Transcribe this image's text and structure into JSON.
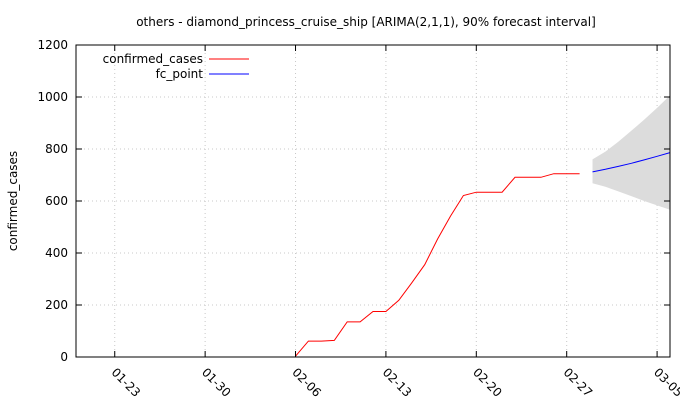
{
  "chart_data": {
    "type": "line",
    "title": "others - diamond_princess_cruise_ship [ARIMA(2,1,1), 90% forecast interval]",
    "ylabel": "confirmed_cases",
    "xlabel": "",
    "ylim": [
      0,
      1200
    ],
    "yticks": [
      0,
      200,
      400,
      600,
      800,
      1000,
      1200
    ],
    "xlim": [
      "2020-01-20",
      "2020-03-06"
    ],
    "xticks": [
      {
        "date": "2020-01-23",
        "label": "01-23"
      },
      {
        "date": "2020-01-30",
        "label": "01-30"
      },
      {
        "date": "2020-02-06",
        "label": "02-06"
      },
      {
        "date": "2020-02-13",
        "label": "02-13"
      },
      {
        "date": "2020-02-20",
        "label": "02-20"
      },
      {
        "date": "2020-02-27",
        "label": "02-27"
      },
      {
        "date": "2020-03-05",
        "label": "03-05"
      }
    ],
    "grid": true,
    "legend_position": "top-left",
    "series": [
      {
        "name": "confirmed_cases",
        "color": "#ff0000",
        "points": [
          [
            "2020-02-06",
            3
          ],
          [
            "2020-02-07",
            61
          ],
          [
            "2020-02-08",
            61
          ],
          [
            "2020-02-09",
            64
          ],
          [
            "2020-02-10",
            135
          ],
          [
            "2020-02-11",
            135
          ],
          [
            "2020-02-12",
            175
          ],
          [
            "2020-02-13",
            175
          ],
          [
            "2020-02-14",
            218
          ],
          [
            "2020-02-15",
            285
          ],
          [
            "2020-02-16",
            355
          ],
          [
            "2020-02-17",
            454
          ],
          [
            "2020-02-18",
            542
          ],
          [
            "2020-02-19",
            621
          ],
          [
            "2020-02-20",
            634
          ],
          [
            "2020-02-21",
            634
          ],
          [
            "2020-02-22",
            634
          ],
          [
            "2020-02-23",
            691
          ],
          [
            "2020-02-24",
            691
          ],
          [
            "2020-02-25",
            691
          ],
          [
            "2020-02-26",
            705
          ],
          [
            "2020-02-27",
            705
          ],
          [
            "2020-02-28",
            705
          ]
        ]
      },
      {
        "name": "fc_point",
        "color": "#0000ff",
        "points": [
          [
            "2020-02-29",
            712
          ],
          [
            "2020-03-01",
            722
          ],
          [
            "2020-03-02",
            733
          ],
          [
            "2020-03-03",
            745
          ],
          [
            "2020-03-04",
            758
          ],
          [
            "2020-03-05",
            772
          ],
          [
            "2020-03-06",
            786
          ]
        ]
      }
    ],
    "interval": {
      "fill": "#dcdcdc",
      "points": [
        [
          "2020-02-29",
          668,
          760
        ],
        [
          "2020-03-01",
          655,
          790
        ],
        [
          "2020-03-02",
          637,
          828
        ],
        [
          "2020-03-03",
          619,
          870
        ],
        [
          "2020-03-04",
          600,
          913
        ],
        [
          "2020-03-05",
          583,
          958
        ],
        [
          "2020-03-06",
          566,
          1006
        ]
      ]
    }
  }
}
